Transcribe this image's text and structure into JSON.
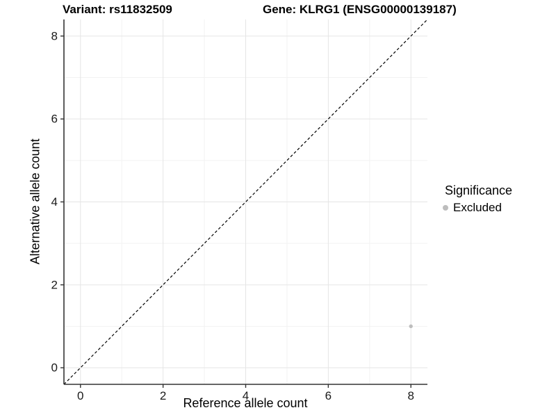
{
  "header": {
    "variant_title": "Variant: rs11832509",
    "gene_title": "Gene: KLRG1 (ENSG00000139187)"
  },
  "chart_data": {
    "type": "scatter",
    "xlabel": "Reference allele count",
    "ylabel": "Alternative allele count",
    "xlim": [
      -0.4,
      8.4
    ],
    "ylim": [
      -0.4,
      8.4
    ],
    "xticks": [
      0,
      2,
      4,
      6,
      8
    ],
    "yticks": [
      0,
      2,
      4,
      6,
      8
    ],
    "x_minor_gridlines": [
      1,
      3,
      5,
      7
    ],
    "y_minor_gridlines": [
      1,
      3,
      5,
      7
    ],
    "grid": "major+minor",
    "reference_line": {
      "type": "identity",
      "style": "dashed",
      "color": "#000000"
    },
    "series": [
      {
        "name": "Excluded",
        "color": "#bdbdbd",
        "marker_radius": 2.7,
        "points": [
          [
            8,
            1
          ]
        ]
      }
    ],
    "legend": {
      "title": "Significance",
      "position": "right",
      "items": [
        {
          "label": "Excluded",
          "color": "#bdbdbd"
        }
      ]
    }
  },
  "colors": {
    "background": "#ffffff",
    "grid_major": "#e5e5e5",
    "grid_minor": "#f2f2f2",
    "axis": "#333333",
    "tick_text": "#1a1a1a"
  }
}
